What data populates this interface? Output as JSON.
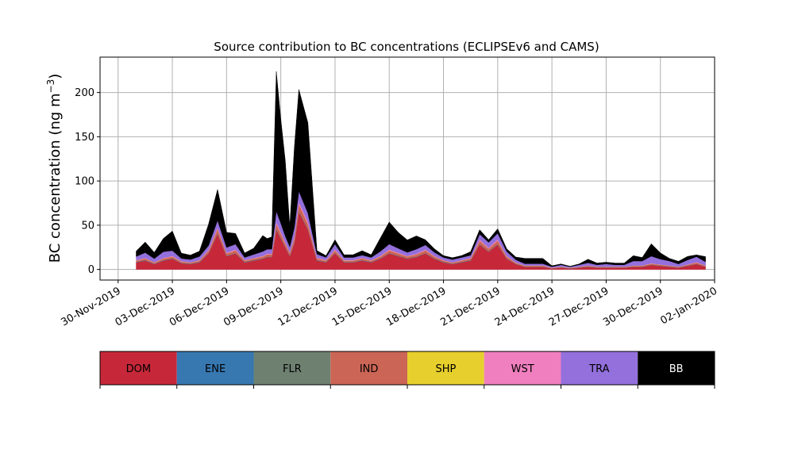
{
  "chart_data": {
    "type": "area",
    "stacked": true,
    "title": "Source contribution to BC concentrations (ECLIPSEv6 and CAMS)",
    "ylabel_main": "BC concentration (ng m",
    "ylabel_sup": "−3",
    "ylabel_tail": ")",
    "xlabel": "",
    "x_range": [
      "2019-11-29",
      "2020-01-02"
    ],
    "ylim": [
      -12,
      240
    ],
    "grid": true,
    "x_ticks": [
      {
        "date": "2019-11-30",
        "label": "30-Nov-2019"
      },
      {
        "date": "2019-12-03",
        "label": "03-Dec-2019"
      },
      {
        "date": "2019-12-06",
        "label": "06-Dec-2019"
      },
      {
        "date": "2019-12-09",
        "label": "09-Dec-2019"
      },
      {
        "date": "2019-12-12",
        "label": "12-Dec-2019"
      },
      {
        "date": "2019-12-15",
        "label": "15-Dec-2019"
      },
      {
        "date": "2019-12-18",
        "label": "18-Dec-2019"
      },
      {
        "date": "2019-12-21",
        "label": "21-Dec-2019"
      },
      {
        "date": "2019-12-24",
        "label": "24-Dec-2019"
      },
      {
        "date": "2019-12-27",
        "label": "27-Dec-2019"
      },
      {
        "date": "2019-12-30",
        "label": "30-Dec-2019"
      },
      {
        "date": "2020-01-02",
        "label": "02-Jan-2020"
      }
    ],
    "y_ticks": [
      0,
      50,
      100,
      150,
      200
    ],
    "dates": [
      "2019-12-01",
      "2019-12-01 12:00",
      "2019-12-02",
      "2019-12-02 12:00",
      "2019-12-03",
      "2019-12-03 12:00",
      "2019-12-04",
      "2019-12-04 12:00",
      "2019-12-05",
      "2019-12-05 12:00",
      "2019-12-06",
      "2019-12-06 12:00",
      "2019-12-07",
      "2019-12-07 12:00",
      "2019-12-08",
      "2019-12-08 06:00",
      "2019-12-08 12:00",
      "2019-12-08 18:00",
      "2019-12-09",
      "2019-12-09 06:00",
      "2019-12-09 12:00",
      "2019-12-09 18:00",
      "2019-12-10",
      "2019-12-10 12:00",
      "2019-12-11",
      "2019-12-11 12:00",
      "2019-12-12",
      "2019-12-12 12:00",
      "2019-12-13",
      "2019-12-13 12:00",
      "2019-12-14",
      "2019-12-14 12:00",
      "2019-12-15",
      "2019-12-15 12:00",
      "2019-12-16",
      "2019-12-16 12:00",
      "2019-12-17",
      "2019-12-17 12:00",
      "2019-12-18",
      "2019-12-18 12:00",
      "2019-12-19",
      "2019-12-19 12:00",
      "2019-12-20",
      "2019-12-20 12:00",
      "2019-12-21",
      "2019-12-21 12:00",
      "2019-12-22",
      "2019-12-22 12:00",
      "2019-12-23",
      "2019-12-23 12:00",
      "2019-12-24",
      "2019-12-24 12:00",
      "2019-12-25",
      "2019-12-25 12:00",
      "2019-12-26",
      "2019-12-26 12:00",
      "2019-12-27",
      "2019-12-27 12:00",
      "2019-12-28",
      "2019-12-28 12:00",
      "2019-12-29",
      "2019-12-29 12:00",
      "2019-12-30",
      "2019-12-30 12:00",
      "2019-12-31",
      "2019-12-31 12:00",
      "2020-01-01",
      "2020-01-01 12:00"
    ],
    "series": [
      {
        "name": "DOM",
        "color": "#C6283A",
        "values": [
          8,
          10,
          6,
          10,
          12,
          7,
          6,
          8,
          18,
          40,
          15,
          18,
          8,
          10,
          12,
          14,
          14,
          45,
          35,
          25,
          15,
          30,
          65,
          45,
          10,
          8,
          18,
          8,
          8,
          10,
          8,
          12,
          18,
          15,
          12,
          14,
          18,
          12,
          8,
          6,
          8,
          10,
          28,
          20,
          28,
          12,
          6,
          3,
          3,
          3,
          1,
          2,
          1,
          2,
          3,
          2,
          2,
          2,
          2,
          3,
          3,
          5,
          4,
          3,
          2,
          4,
          6,
          3
        ]
      },
      {
        "name": "ENE",
        "color": "#3778B1",
        "values": [
          0.3,
          0.3,
          0.3,
          0.3,
          0.3,
          0.3,
          0.3,
          0.3,
          0.3,
          0.5,
          0.3,
          0.3,
          0.3,
          0.3,
          0.3,
          0.3,
          0.3,
          0.5,
          0.4,
          0.3,
          0.3,
          0.4,
          0.5,
          0.4,
          0.3,
          0.3,
          0.3,
          0.3,
          0.3,
          0.3,
          0.3,
          0.3,
          0.3,
          0.3,
          0.3,
          0.3,
          0.3,
          0.3,
          0.3,
          0.3,
          0.3,
          0.3,
          0.3,
          0.3,
          0.3,
          0.3,
          0.2,
          0.2,
          0.2,
          0.2,
          0.2,
          0.2,
          0.2,
          0.2,
          0.2,
          0.2,
          0.2,
          0.2,
          0.2,
          0.2,
          0.2,
          0.2,
          0.2,
          0.2,
          0.2,
          0.2,
          0.2,
          0.2
        ]
      },
      {
        "name": "FLR",
        "color": "#6E8171",
        "values": [
          0.2,
          0.2,
          0.2,
          0.2,
          0.2,
          0.2,
          0.2,
          0.2,
          0.2,
          0.3,
          0.2,
          0.2,
          0.2,
          0.2,
          0.2,
          0.2,
          0.2,
          0.3,
          0.3,
          0.2,
          0.2,
          0.3,
          0.3,
          0.3,
          0.2,
          0.2,
          0.2,
          0.2,
          0.2,
          0.2,
          0.2,
          0.2,
          0.2,
          0.2,
          0.2,
          0.2,
          0.2,
          0.2,
          0.2,
          0.2,
          0.2,
          0.2,
          0.2,
          0.2,
          0.2,
          0.2,
          0.1,
          0.1,
          0.1,
          0.1,
          0.1,
          0.1,
          0.1,
          0.1,
          0.1,
          0.1,
          0.1,
          0.1,
          0.1,
          0.1,
          0.1,
          0.1,
          0.1,
          0.1,
          0.1,
          0.1,
          0.1,
          0.1
        ]
      },
      {
        "name": "IND",
        "color": "#CB6556",
        "values": [
          1.5,
          1.8,
          1.2,
          1.8,
          2,
          1.3,
          1.2,
          1.5,
          2.5,
          5,
          2.5,
          3,
          1.5,
          1.8,
          2,
          2.5,
          2.5,
          6,
          5,
          4,
          3,
          5,
          8,
          6,
          2,
          1.5,
          3,
          1.5,
          1.5,
          2,
          1.5,
          2,
          3,
          2.5,
          2,
          2.5,
          3,
          2,
          1.5,
          1.2,
          1.5,
          1.8,
          4,
          3,
          4,
          2,
          1.2,
          0.8,
          0.8,
          0.8,
          0.5,
          0.6,
          0.5,
          0.6,
          0.8,
          0.6,
          0.6,
          0.6,
          0.6,
          0.8,
          0.8,
          1.2,
          1,
          0.8,
          0.6,
          1,
          1.5,
          0.8
        ]
      },
      {
        "name": "SHP",
        "color": "#E7CF2D",
        "values": [
          0.1,
          0.1,
          0.1,
          0.1,
          0.1,
          0.1,
          0.1,
          0.1,
          0.1,
          0.1,
          0.1,
          0.1,
          0.1,
          0.1,
          0.1,
          0.1,
          0.1,
          0.1,
          0.1,
          0.1,
          0.1,
          0.1,
          0.1,
          0.1,
          0.1,
          0.1,
          0.1,
          0.1,
          0.1,
          0.1,
          0.1,
          0.1,
          0.1,
          0.1,
          0.1,
          0.1,
          0.1,
          0.1,
          0.1,
          0.1,
          0.1,
          0.1,
          0.1,
          0.1,
          0.1,
          0.1,
          0.1,
          0.1,
          0.1,
          0.1,
          0.1,
          0.1,
          0.1,
          0.1,
          0.1,
          0.1,
          0.1,
          0.1,
          0.1,
          0.1,
          0.1,
          0.1,
          0.1,
          0.1,
          0.1,
          0.1,
          0.1,
          0.1
        ]
      },
      {
        "name": "WST",
        "color": "#F07FBF",
        "values": [
          0.5,
          0.6,
          0.4,
          0.6,
          0.7,
          0.5,
          0.4,
          0.5,
          0.8,
          1.5,
          0.8,
          1,
          0.5,
          0.6,
          0.7,
          0.8,
          0.8,
          2,
          1.6,
          1.2,
          1,
          1.6,
          2.5,
          2,
          0.7,
          0.5,
          1,
          0.5,
          0.5,
          0.6,
          0.5,
          0.7,
          1,
          0.8,
          0.7,
          0.8,
          1,
          0.7,
          0.5,
          0.4,
          0.5,
          0.6,
          1.3,
          1,
          1.3,
          0.7,
          0.4,
          0.3,
          0.3,
          0.3,
          0.2,
          0.2,
          0.2,
          0.2,
          0.3,
          0.2,
          0.2,
          0.2,
          0.2,
          0.3,
          0.3,
          0.4,
          0.3,
          0.3,
          0.2,
          0.3,
          0.5,
          0.3
        ]
      },
      {
        "name": "TRA",
        "color": "#9370DC",
        "values": [
          4,
          6,
          4,
          7,
          6,
          3,
          3,
          4,
          5,
          8,
          6,
          6,
          3,
          4,
          5,
          5,
          5,
          12,
          10,
          7,
          6,
          10,
          12,
          10,
          4,
          3,
          6,
          3,
          3,
          3,
          3,
          5,
          6,
          5,
          4,
          5,
          5,
          4,
          3,
          3,
          3,
          3,
          6,
          6,
          7,
          5,
          3,
          2,
          2,
          2,
          1,
          2,
          1,
          2,
          3,
          2,
          3,
          2,
          2,
          5,
          5,
          8,
          6,
          5,
          3,
          5,
          6,
          4
        ]
      },
      {
        "name": "BB",
        "color": "#000000",
        "values": [
          6,
          12,
          7,
          15,
          22,
          6,
          5,
          6,
          24,
          35,
          17,
          12,
          5,
          7,
          18,
          12,
          14,
          158,
          118,
          85,
          23,
          90,
          115,
          102,
          4,
          2,
          5,
          3,
          3,
          5,
          3,
          15,
          25,
          18,
          14,
          15,
          6,
          4,
          2,
          2,
          2,
          4,
          5,
          3,
          5,
          3,
          3,
          6,
          6,
          6,
          1,
          1,
          0.5,
          1,
          4,
          2,
          2,
          2,
          2,
          6,
          4,
          14,
          7,
          3,
          3,
          4,
          2,
          6
        ]
      }
    ],
    "legend": {
      "position": "below-plot",
      "items": [
        {
          "label": "DOM",
          "color": "#C6283A",
          "text_color": "#000000"
        },
        {
          "label": "ENE",
          "color": "#3778B1",
          "text_color": "#000000"
        },
        {
          "label": "FLR",
          "color": "#6E8171",
          "text_color": "#000000"
        },
        {
          "label": "IND",
          "color": "#CB6556",
          "text_color": "#000000"
        },
        {
          "label": "SHP",
          "color": "#E7CF2D",
          "text_color": "#000000"
        },
        {
          "label": "WST",
          "color": "#F07FBF",
          "text_color": "#000000"
        },
        {
          "label": "TRA",
          "color": "#9370DC",
          "text_color": "#000000"
        },
        {
          "label": "BB",
          "color": "#000000",
          "text_color": "#ffffff"
        }
      ]
    }
  }
}
